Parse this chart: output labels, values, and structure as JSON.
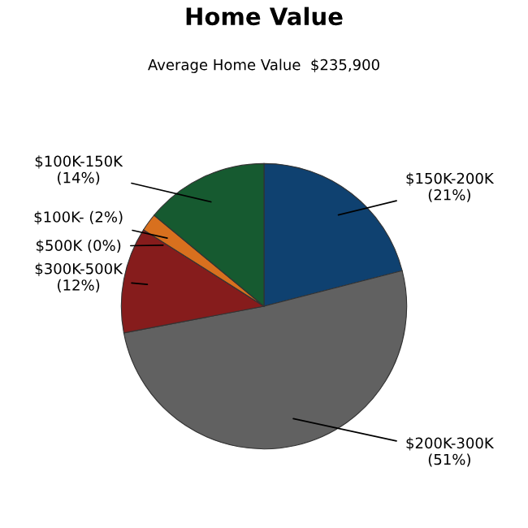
{
  "chart_data": {
    "type": "pie",
    "title": "Home Value",
    "subtitle": "Average Home Value  $235,900",
    "categories": [
      "$150K-200K",
      "$200K-300K",
      "$300K-500K",
      "$500K",
      "$100K-",
      "$100K-150K"
    ],
    "values": [
      21,
      51,
      12,
      0,
      2,
      14
    ],
    "value_labels": [
      "(21%)",
      "(51%)",
      "(12%)",
      "(0%)",
      "(2%)",
      "(14%)"
    ],
    "colors": [
      "#0f4170",
      "#616161",
      "#861c1c",
      "#b8b800",
      "#d8701e",
      "#165a30"
    ]
  }
}
